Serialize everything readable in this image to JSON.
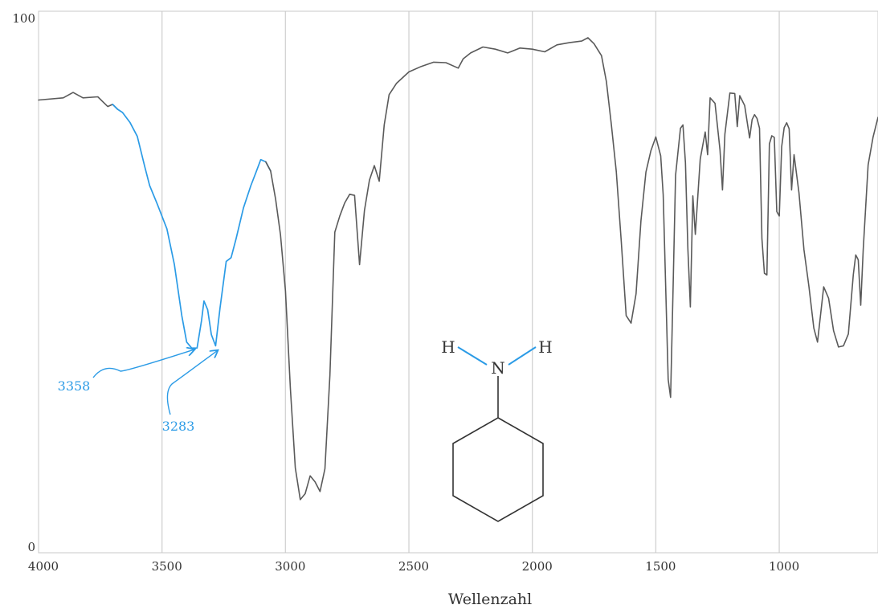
{
  "chart_data": {
    "type": "line",
    "xlabel": "Wellenzahl",
    "ylabel": "",
    "xlim": [
      4000,
      600
    ],
    "ylim": [
      0,
      100
    ],
    "x_reversed": true,
    "x_ticks": [
      4000,
      3500,
      3000,
      2500,
      2000,
      1500,
      1000
    ],
    "y_ticks": [
      0,
      100
    ],
    "grid": true,
    "colors": {
      "spectrum": "#5a5a5a",
      "highlight": "#2b9be6"
    },
    "highlight_range": [
      3680,
      3080
    ],
    "series": [
      {
        "points": [
          [
            4000,
            83.6
          ],
          [
            3900,
            84.0
          ],
          [
            3860,
            85.0
          ],
          [
            3820,
            84.0
          ],
          [
            3760,
            84.2
          ],
          [
            3720,
            82.4
          ],
          [
            3700,
            82.8
          ],
          [
            3680,
            81.9
          ],
          [
            3660,
            81.3
          ],
          [
            3630,
            79.5
          ],
          [
            3600,
            76.9
          ],
          [
            3570,
            71.3
          ],
          [
            3550,
            67.8
          ],
          [
            3520,
            64.5
          ],
          [
            3480,
            59.8
          ],
          [
            3450,
            53.3
          ],
          [
            3420,
            43.8
          ],
          [
            3400,
            38.9
          ],
          [
            3380,
            37.8
          ],
          [
            3358,
            37.8
          ],
          [
            3340,
            42.9
          ],
          [
            3330,
            46.5
          ],
          [
            3315,
            44.9
          ],
          [
            3300,
            40.3
          ],
          [
            3283,
            38.2
          ],
          [
            3265,
            45.2
          ],
          [
            3240,
            53.8
          ],
          [
            3220,
            54.5
          ],
          [
            3200,
            58.0
          ],
          [
            3170,
            63.7
          ],
          [
            3140,
            67.8
          ],
          [
            3120,
            70.2
          ],
          [
            3100,
            72.6
          ],
          [
            3080,
            72.2
          ],
          [
            3060,
            70.5
          ],
          [
            3040,
            65.3
          ],
          [
            3020,
            58.7
          ],
          [
            3000,
            48.3
          ],
          [
            2980,
            30.3
          ],
          [
            2960,
            15.7
          ],
          [
            2940,
            9.8
          ],
          [
            2920,
            10.9
          ],
          [
            2900,
            14.2
          ],
          [
            2880,
            13.1
          ],
          [
            2860,
            11.3
          ],
          [
            2840,
            15.5
          ],
          [
            2820,
            32.8
          ],
          [
            2800,
            59.2
          ],
          [
            2780,
            62.2
          ],
          [
            2760,
            64.6
          ],
          [
            2740,
            66.2
          ],
          [
            2720,
            66.0
          ],
          [
            2700,
            53.2
          ],
          [
            2680,
            63.2
          ],
          [
            2660,
            68.8
          ],
          [
            2640,
            71.5
          ],
          [
            2620,
            68.6
          ],
          [
            2600,
            79.0
          ],
          [
            2580,
            84.6
          ],
          [
            2550,
            86.7
          ],
          [
            2500,
            88.8
          ],
          [
            2450,
            89.8
          ],
          [
            2400,
            90.6
          ],
          [
            2350,
            90.5
          ],
          [
            2300,
            89.5
          ],
          [
            2280,
            91.2
          ],
          [
            2250,
            92.3
          ],
          [
            2200,
            93.4
          ],
          [
            2150,
            93.0
          ],
          [
            2100,
            92.3
          ],
          [
            2050,
            93.2
          ],
          [
            2000,
            93.0
          ],
          [
            1950,
            92.5
          ],
          [
            1900,
            93.8
          ],
          [
            1850,
            94.2
          ],
          [
            1800,
            94.5
          ],
          [
            1775,
            95.1
          ],
          [
            1750,
            94.0
          ],
          [
            1720,
            91.8
          ],
          [
            1700,
            87.0
          ],
          [
            1680,
            79.0
          ],
          [
            1660,
            70.4
          ],
          [
            1640,
            57.5
          ],
          [
            1620,
            43.8
          ],
          [
            1600,
            42.4
          ],
          [
            1580,
            47.8
          ],
          [
            1560,
            61.3
          ],
          [
            1540,
            70.3
          ],
          [
            1520,
            74.2
          ],
          [
            1500,
            76.8
          ],
          [
            1480,
            73.3
          ],
          [
            1470,
            66.1
          ],
          [
            1460,
            49.1
          ],
          [
            1450,
            32.0
          ],
          [
            1440,
            28.7
          ],
          [
            1430,
            48.8
          ],
          [
            1420,
            69.7
          ],
          [
            1400,
            78.4
          ],
          [
            1390,
            79.0
          ],
          [
            1380,
            72.0
          ],
          [
            1370,
            56.2
          ],
          [
            1360,
            45.4
          ],
          [
            1350,
            65.9
          ],
          [
            1340,
            58.8
          ],
          [
            1320,
            72.7
          ],
          [
            1300,
            77.7
          ],
          [
            1290,
            73.5
          ],
          [
            1280,
            84.0
          ],
          [
            1260,
            83.0
          ],
          [
            1240,
            74.4
          ],
          [
            1230,
            67.0
          ],
          [
            1220,
            77.3
          ],
          [
            1200,
            84.9
          ],
          [
            1180,
            84.8
          ],
          [
            1170,
            78.7
          ],
          [
            1160,
            84.4
          ],
          [
            1140,
            82.6
          ],
          [
            1120,
            76.6
          ],
          [
            1110,
            80.0
          ],
          [
            1100,
            80.9
          ],
          [
            1090,
            80.2
          ],
          [
            1080,
            78.4
          ],
          [
            1070,
            58.0
          ],
          [
            1060,
            51.6
          ],
          [
            1050,
            51.3
          ],
          [
            1040,
            75.5
          ],
          [
            1030,
            77.0
          ],
          [
            1020,
            76.7
          ],
          [
            1010,
            63.0
          ],
          [
            1000,
            62.2
          ],
          [
            990,
            75.0
          ],
          [
            980,
            78.5
          ],
          [
            970,
            79.4
          ],
          [
            960,
            78.3
          ],
          [
            950,
            67.0
          ],
          [
            940,
            73.5
          ],
          [
            920,
            66.5
          ],
          [
            900,
            56.0
          ],
          [
            880,
            49.3
          ],
          [
            860,
            41.5
          ],
          [
            845,
            38.9
          ],
          [
            830,
            45.0
          ],
          [
            820,
            49.1
          ],
          [
            800,
            47.0
          ],
          [
            780,
            41.0
          ],
          [
            760,
            38.0
          ],
          [
            740,
            38.2
          ],
          [
            720,
            40.4
          ],
          [
            700,
            51.4
          ],
          [
            690,
            55.0
          ],
          [
            680,
            54.1
          ],
          [
            670,
            45.7
          ],
          [
            660,
            56.0
          ],
          [
            640,
            71.6
          ],
          [
            620,
            76.8
          ],
          [
            600,
            80.4
          ]
        ]
      }
    ],
    "annotations": [
      {
        "label": "3358",
        "x": 3358,
        "y": 37.8
      },
      {
        "label": "3283",
        "x": 3283,
        "y": 38.2
      }
    ]
  },
  "molecule": {
    "name_shown": "",
    "atoms": {
      "n": "N",
      "h_left": "H",
      "h_right": "H"
    }
  }
}
